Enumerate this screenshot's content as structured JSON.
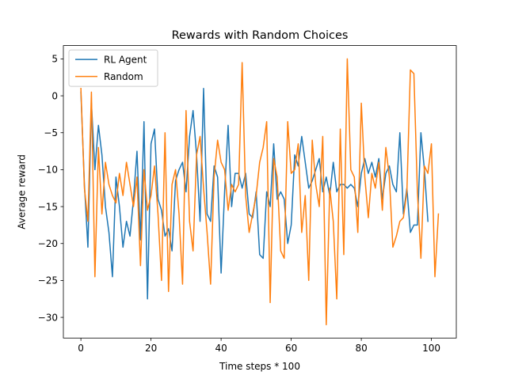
{
  "chart_data": {
    "type": "line",
    "title": "Rewards with Random Choices",
    "xlabel": "Time steps * 100",
    "ylabel": "Average reward",
    "xlim": [
      -5,
      107.1
    ],
    "ylim": [
      -32.8,
      6.8
    ],
    "xticks": [
      0,
      20,
      40,
      60,
      80,
      100
    ],
    "yticks": [
      5,
      0,
      -5,
      -10,
      -15,
      -20,
      -25,
      -30
    ],
    "ytick_labels": [
      "5",
      "0",
      "−5",
      "−10",
      "−15",
      "−20",
      "−25",
      "−30"
    ],
    "grid": false,
    "legend_position": "upper-left",
    "series": [
      {
        "name": "RL Agent",
        "color": "#1f77b4",
        "values": [
          0.5,
          -12,
          -20.5,
          -1,
          -10,
          -4,
          -8,
          -15,
          -18.5,
          -24.5,
          -11,
          -15,
          -20.5,
          -17,
          -19,
          -14,
          -7.5,
          -19.5,
          -3.5,
          -27.5,
          -6.5,
          -4.5,
          -14,
          -15.5,
          -19,
          -18,
          -21,
          -11.5,
          -10,
          -9,
          -13,
          -5.5,
          -2,
          -8,
          -17,
          1,
          -16,
          -17,
          -9.5,
          -11,
          -24,
          -13,
          -4,
          -15,
          -10.5,
          -10.5,
          -12.5,
          -10.5,
          -16,
          -16.5,
          -13,
          -21.5,
          -22,
          -13,
          -15,
          -6.5,
          -14,
          -13,
          -14,
          -20,
          -17.5,
          -8,
          -9.5,
          -5.5,
          -9,
          -12.5,
          -11.5,
          -10,
          -8.5,
          -13,
          -11,
          -13.5,
          -9,
          -13,
          -12,
          -12,
          -12.5,
          -12,
          -12.5,
          -15,
          -10.5,
          -8.5,
          -10.5,
          -9,
          -11,
          -8.5,
          -14,
          -10.5,
          -9.5,
          -12,
          -13,
          -5,
          -16,
          -12.5,
          -18.5,
          -17.5,
          -17.5,
          -5,
          -10,
          -17
        ]
      },
      {
        "name": "Random",
        "color": "#ff7f0e",
        "values": [
          1,
          -12.5,
          -17,
          0.5,
          -24.5,
          -7,
          -16,
          -9,
          -12,
          -13.5,
          -14.5,
          -10.5,
          -13.5,
          -9,
          -12,
          -15,
          -11,
          -23,
          -10,
          -15.5,
          -13.5,
          -9.5,
          -16,
          -25,
          -5,
          -26.5,
          -12,
          -10,
          -16,
          -25.5,
          -2,
          -17,
          -21,
          -8,
          -5.5,
          -12.5,
          -18.5,
          -25.5,
          -11,
          -6,
          -9,
          -10,
          -15.5,
          -12,
          -13,
          -12,
          4.5,
          -13.5,
          -18.5,
          -16,
          -13.5,
          -9,
          -7,
          -3.5,
          -28,
          -8.5,
          -11,
          -21,
          -22,
          -3.5,
          -10.5,
          -10,
          -6.5,
          -18.5,
          -13.5,
          -25,
          -6,
          -12,
          -15,
          -5.5,
          -31,
          -12.5,
          -17,
          -27.5,
          -4.5,
          -21.5,
          5,
          -10,
          -11,
          -18.5,
          -1,
          -11,
          -16.5,
          -10.5,
          -12.5,
          -9,
          -15.5,
          -7,
          -11,
          -20.5,
          -19,
          -17,
          -16.5,
          -13,
          3.5,
          3,
          -13,
          -22,
          -9.5,
          -10.5,
          -6.5,
          -24.5,
          -16
        ]
      }
    ]
  }
}
